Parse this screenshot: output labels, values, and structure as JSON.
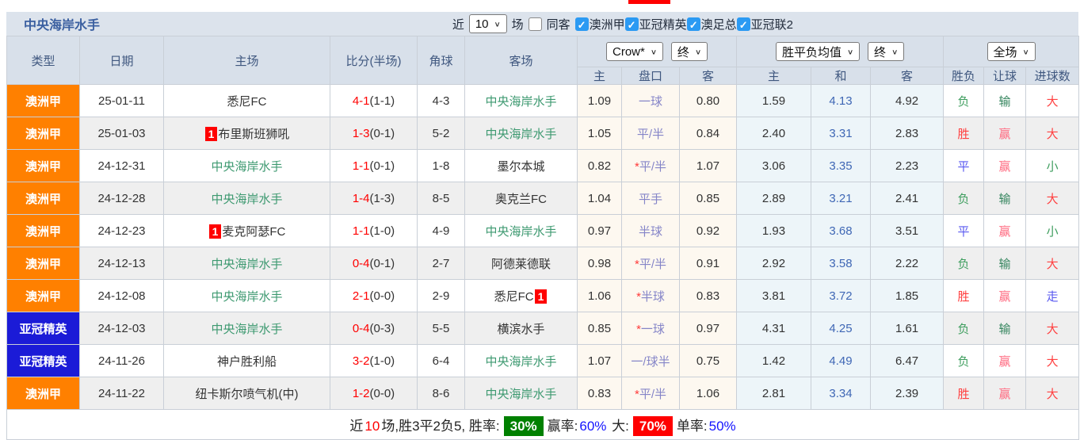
{
  "team_header": {
    "title": "中央海岸水手",
    "recent_label": "近",
    "recent_value": "10",
    "games_label": "场",
    "same_away_label": "同客",
    "same_away_checked": false,
    "leagues": [
      {
        "label": "澳洲甲",
        "checked": true
      },
      {
        "label": "亚冠精英",
        "checked": true
      },
      {
        "label": "澳足总",
        "checked": true
      },
      {
        "label": "亚冠联2",
        "checked": true
      }
    ]
  },
  "table": {
    "columns": [
      "类型",
      "日期",
      "主场",
      "比分(半场)",
      "角球",
      "客场"
    ],
    "subcols": [
      "主",
      "盘口",
      "客",
      "主",
      "和",
      "客",
      "胜负",
      "让球",
      "进球数"
    ],
    "selects": {
      "bookmaker": "Crow*",
      "asian_period": "终",
      "europe_source": "胜平负均值",
      "europe_period": "终",
      "scope": "全场"
    },
    "rows": [
      {
        "type": "澳洲甲",
        "league_color": "orange",
        "date": "25-01-11",
        "home": {
          "name": "悉尼FC",
          "self": false
        },
        "score": {
          "ft": "4-1",
          "ht": "(1-1)"
        },
        "corner": "4-3",
        "away": {
          "name": "中央海岸水手",
          "self": true
        },
        "asian": {
          "h": "1.09",
          "star": false,
          "line": "一球",
          "a": "0.80"
        },
        "euro": {
          "h": "1.59",
          "d": "4.13",
          "a": "4.92"
        },
        "res": {
          "outcome": {
            "t": "负",
            "c": "green"
          },
          "let": {
            "t": "输",
            "c": "dgreen"
          },
          "goal": {
            "t": "大",
            "c": "red"
          }
        }
      },
      {
        "type": "澳洲甲",
        "league_color": "orange",
        "date": "25-01-03",
        "home": {
          "name": "布里斯班狮吼",
          "badge": "1",
          "badge_pos": "before",
          "self": false
        },
        "score": {
          "ft": "1-3",
          "ht": "(0-1)"
        },
        "corner": "5-2",
        "away": {
          "name": "中央海岸水手",
          "self": true
        },
        "asian": {
          "h": "1.05",
          "star": false,
          "line": "平/半",
          "a": "0.84"
        },
        "euro": {
          "h": "2.40",
          "d": "3.31",
          "a": "2.83"
        },
        "res": {
          "outcome": {
            "t": "胜",
            "c": "red"
          },
          "let": {
            "t": "赢",
            "c": "pink"
          },
          "goal": {
            "t": "大",
            "c": "red"
          }
        }
      },
      {
        "type": "澳洲甲",
        "league_color": "orange",
        "date": "24-12-31",
        "home": {
          "name": "中央海岸水手",
          "self": true
        },
        "score": {
          "ft": "1-1",
          "ht": "(0-1)"
        },
        "corner": "1-8",
        "away": {
          "name": "墨尔本城",
          "self": false
        },
        "asian": {
          "h": "0.82",
          "star": true,
          "line": "平/半",
          "a": "1.07"
        },
        "euro": {
          "h": "3.06",
          "d": "3.35",
          "a": "2.23"
        },
        "res": {
          "outcome": {
            "t": "平",
            "c": "blue"
          },
          "let": {
            "t": "赢",
            "c": "pink"
          },
          "goal": {
            "t": "小",
            "c": "green"
          }
        }
      },
      {
        "type": "澳洲甲",
        "league_color": "orange",
        "date": "24-12-28",
        "home": {
          "name": "中央海岸水手",
          "self": true
        },
        "score": {
          "ft": "1-4",
          "ht": "(1-3)"
        },
        "corner": "8-5",
        "away": {
          "name": "奥克兰FC",
          "self": false
        },
        "asian": {
          "h": "1.04",
          "star": false,
          "line": "平手",
          "a": "0.85"
        },
        "euro": {
          "h": "2.89",
          "d": "3.21",
          "a": "2.41"
        },
        "res": {
          "outcome": {
            "t": "负",
            "c": "green"
          },
          "let": {
            "t": "输",
            "c": "dgreen"
          },
          "goal": {
            "t": "大",
            "c": "red"
          }
        }
      },
      {
        "type": "澳洲甲",
        "league_color": "orange",
        "date": "24-12-23",
        "home": {
          "name": "麦克阿瑟FC",
          "badge": "1",
          "badge_pos": "before",
          "self": false
        },
        "score": {
          "ft": "1-1",
          "ht": "(1-0)"
        },
        "corner": "4-9",
        "away": {
          "name": "中央海岸水手",
          "self": true
        },
        "asian": {
          "h": "0.97",
          "star": false,
          "line": "半球",
          "a": "0.92"
        },
        "euro": {
          "h": "1.93",
          "d": "3.68",
          "a": "3.51"
        },
        "res": {
          "outcome": {
            "t": "平",
            "c": "blue"
          },
          "let": {
            "t": "赢",
            "c": "pink"
          },
          "goal": {
            "t": "小",
            "c": "green"
          }
        }
      },
      {
        "type": "澳洲甲",
        "league_color": "orange",
        "date": "24-12-13",
        "home": {
          "name": "中央海岸水手",
          "self": true
        },
        "score": {
          "ft": "0-4",
          "ht": "(0-1)"
        },
        "corner": "2-7",
        "away": {
          "name": "阿德莱德联",
          "self": false
        },
        "asian": {
          "h": "0.98",
          "star": true,
          "line": "平/半",
          "a": "0.91"
        },
        "euro": {
          "h": "2.92",
          "d": "3.58",
          "a": "2.22"
        },
        "res": {
          "outcome": {
            "t": "负",
            "c": "green"
          },
          "let": {
            "t": "输",
            "c": "dgreen"
          },
          "goal": {
            "t": "大",
            "c": "red"
          }
        }
      },
      {
        "type": "澳洲甲",
        "league_color": "orange",
        "date": "24-12-08",
        "home": {
          "name": "中央海岸水手",
          "self": true
        },
        "score": {
          "ft": "2-1",
          "ht": "(0-0)"
        },
        "corner": "2-9",
        "away": {
          "name": "悉尼FC",
          "badge": "1",
          "badge_pos": "after",
          "self": false
        },
        "asian": {
          "h": "1.06",
          "star": true,
          "line": "半球",
          "a": "0.83"
        },
        "euro": {
          "h": "3.81",
          "d": "3.72",
          "a": "1.85"
        },
        "res": {
          "outcome": {
            "t": "胜",
            "c": "red"
          },
          "let": {
            "t": "赢",
            "c": "pink"
          },
          "goal": {
            "t": "走",
            "c": "blue"
          }
        }
      },
      {
        "type": "亚冠精英",
        "league_color": "blue",
        "date": "24-12-03",
        "home": {
          "name": "中央海岸水手",
          "self": true
        },
        "score": {
          "ft": "0-4",
          "ht": "(0-3)"
        },
        "corner": "5-5",
        "away": {
          "name": "横滨水手",
          "self": false
        },
        "asian": {
          "h": "0.85",
          "star": true,
          "line": "一球",
          "a": "0.97"
        },
        "euro": {
          "h": "4.31",
          "d": "4.25",
          "a": "1.61"
        },
        "res": {
          "outcome": {
            "t": "负",
            "c": "green"
          },
          "let": {
            "t": "输",
            "c": "dgreen"
          },
          "goal": {
            "t": "大",
            "c": "red"
          }
        }
      },
      {
        "type": "亚冠精英",
        "league_color": "blue",
        "date": "24-11-26",
        "home": {
          "name": "神户胜利船",
          "self": false
        },
        "score": {
          "ft": "3-2",
          "ht": "(1-0)"
        },
        "corner": "6-4",
        "away": {
          "name": "中央海岸水手",
          "self": true
        },
        "asian": {
          "h": "1.07",
          "star": false,
          "line": "一/球半",
          "a": "0.75"
        },
        "euro": {
          "h": "1.42",
          "d": "4.49",
          "a": "6.47"
        },
        "res": {
          "outcome": {
            "t": "负",
            "c": "green"
          },
          "let": {
            "t": "赢",
            "c": "pink"
          },
          "goal": {
            "t": "大",
            "c": "red"
          }
        }
      },
      {
        "type": "澳洲甲",
        "league_color": "orange",
        "date": "24-11-22",
        "home": {
          "name": "纽卡斯尔喷气机(中)",
          "self": false
        },
        "score": {
          "ft": "1-2",
          "ht": "(0-0)"
        },
        "corner": "8-6",
        "away": {
          "name": "中央海岸水手",
          "self": true
        },
        "asian": {
          "h": "0.83",
          "star": true,
          "line": "平/半",
          "a": "1.06"
        },
        "euro": {
          "h": "2.81",
          "d": "3.34",
          "a": "2.39"
        },
        "res": {
          "outcome": {
            "t": "胜",
            "c": "red"
          },
          "let": {
            "t": "赢",
            "c": "pink"
          },
          "goal": {
            "t": "大",
            "c": "red"
          }
        }
      }
    ]
  },
  "footer": {
    "segments": [
      {
        "text": "近",
        "style": "plain"
      },
      {
        "text": "10",
        "style": "red-text"
      },
      {
        "text": "场,胜3平2负5, 胜率:",
        "style": "plain"
      },
      {
        "text": "30%",
        "style": "green-badge"
      },
      {
        "text": "赢率:",
        "style": "plain"
      },
      {
        "text": "60%",
        "style": "blue-text"
      },
      {
        "text": " 大:",
        "style": "plain"
      },
      {
        "text": "70%",
        "style": "red-badge"
      },
      {
        "text": "单率:",
        "style": "plain"
      },
      {
        "text": "50%",
        "style": "blue-text"
      }
    ]
  },
  "colors": {
    "league_orange": "#ff8000",
    "league_blue": "#1b1bd7",
    "self_team_green": "#3d9970",
    "score_red": "#ff0000",
    "handicap_purple": "#8585c8",
    "draw_odds_blue": "#3f67b5",
    "win_red": "#ff4040",
    "draw_blue": "#5a5af0",
    "lose_green": "#3f9e5f",
    "big_red": "#ff4040",
    "checkbox_blue": "#2b9af3",
    "rate_green_bg": "#008000",
    "rate_red_bg": "#ff0000"
  }
}
